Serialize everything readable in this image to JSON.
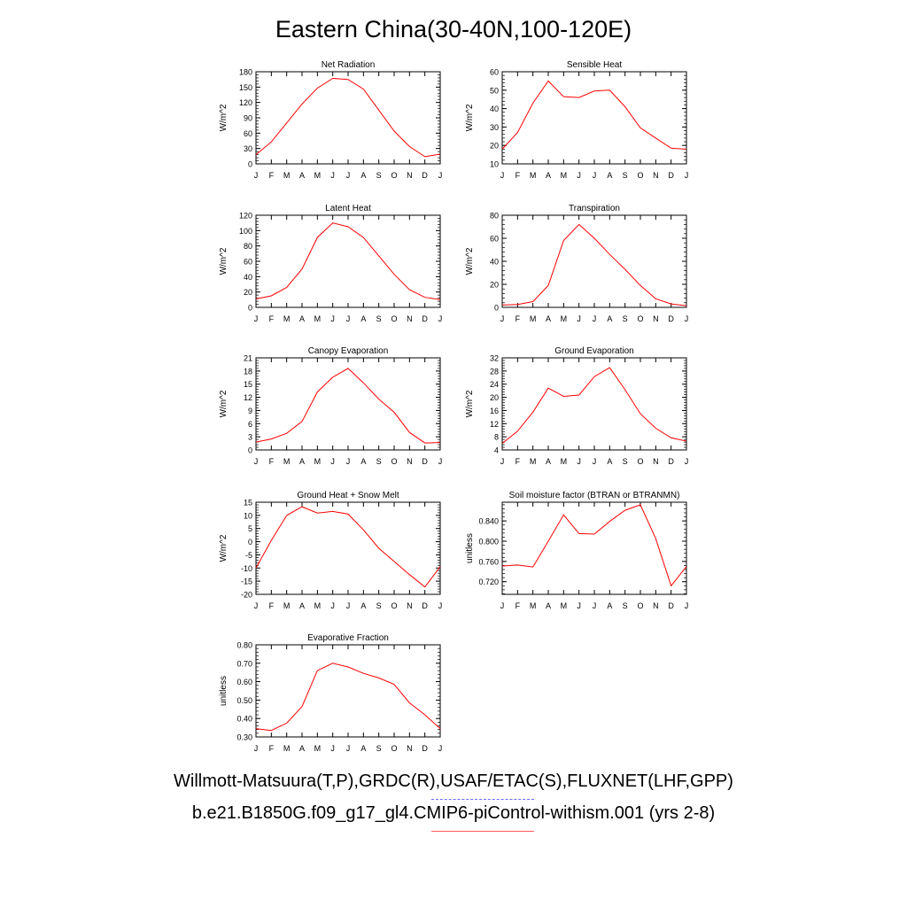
{
  "figure": {
    "title": "Eastern China(30-40N,100-120E)",
    "legend_obs": "Willmott-Matsuura(T,P),GRDC(R),USAF/ETAC(S),FLUXNET(LHF,GPP)",
    "legend_model": "b.e21.B1850G.f09_g17_gl4.CMIP6-piControl-withism.001 (yrs 2-8)",
    "colors": {
      "model": "#ff0000",
      "obs": "#6b6bff"
    }
  },
  "chart_data": [
    {
      "type": "line",
      "title": "Net Radiation",
      "ylabel": "W/m^2",
      "x": [
        "J",
        "F",
        "M",
        "A",
        "M",
        "J",
        "J",
        "A",
        "S",
        "O",
        "N",
        "D",
        "J"
      ],
      "ylim": [
        0,
        180
      ],
      "yticks": [
        "0",
        "30",
        "60",
        "90",
        "120",
        "150",
        "180"
      ],
      "series": [
        {
          "name": "model",
          "values": [
            18,
            43,
            80,
            117,
            148,
            167,
            165,
            146,
            105,
            64,
            34,
            14,
            19
          ]
        }
      ]
    },
    {
      "type": "line",
      "title": "Sensible Heat",
      "ylabel": "W/m^2",
      "x": [
        "J",
        "F",
        "M",
        "A",
        "M",
        "J",
        "J",
        "A",
        "S",
        "O",
        "N",
        "D",
        "J"
      ],
      "ylim": [
        10,
        60
      ],
      "yticks": [
        "10",
        "20",
        "30",
        "40",
        "50",
        "60"
      ],
      "series": [
        {
          "name": "model",
          "values": [
            18,
            27,
            43,
            55,
            46.5,
            46,
            49.5,
            50,
            41,
            29.5,
            24,
            18.5,
            18
          ]
        }
      ]
    },
    {
      "type": "line",
      "title": "Latent Heat",
      "ylabel": "W/m^2",
      "x": [
        "J",
        "F",
        "M",
        "A",
        "M",
        "J",
        "J",
        "A",
        "S",
        "O",
        "N",
        "D",
        "J"
      ],
      "ylim": [
        0,
        120
      ],
      "yticks": [
        "0",
        "20",
        "40",
        "60",
        "80",
        "100",
        "120"
      ],
      "series": [
        {
          "name": "model",
          "values": [
            11,
            15,
            26,
            50,
            91,
            110,
            105,
            91,
            67,
            43,
            23,
            13,
            10
          ]
        }
      ]
    },
    {
      "type": "line",
      "title": "Transpiration",
      "ylabel": "W/m^2",
      "x": [
        "J",
        "F",
        "M",
        "A",
        "M",
        "J",
        "J",
        "A",
        "S",
        "O",
        "N",
        "D",
        "J"
      ],
      "ylim": [
        0,
        80
      ],
      "yticks": [
        "0",
        "20",
        "40",
        "60",
        "80"
      ],
      "series": [
        {
          "name": "model",
          "values": [
            2,
            2.5,
            5,
            19,
            58,
            72,
            60,
            46,
            33,
            19,
            7.5,
            3,
            1.5
          ]
        }
      ]
    },
    {
      "type": "line",
      "title": "Canopy Evaporation",
      "ylabel": "W/m^2",
      "x": [
        "J",
        "F",
        "M",
        "A",
        "M",
        "J",
        "J",
        "A",
        "S",
        "O",
        "N",
        "D",
        "J"
      ],
      "ylim": [
        0,
        21
      ],
      "yticks": [
        "0",
        "3",
        "6",
        "9",
        "12",
        "15",
        "18",
        "21"
      ],
      "series": [
        {
          "name": "model",
          "values": [
            1.8,
            2.5,
            3.8,
            6.5,
            13.2,
            16.6,
            18.6,
            15.3,
            11.6,
            8.6,
            4,
            1.6,
            1.7
          ]
        }
      ]
    },
    {
      "type": "line",
      "title": "Ground Evaporation",
      "ylabel": "W/m^2",
      "x": [
        "J",
        "F",
        "M",
        "A",
        "M",
        "J",
        "J",
        "A",
        "S",
        "O",
        "N",
        "D",
        "J"
      ],
      "ylim": [
        4,
        32
      ],
      "yticks": [
        "4",
        "8",
        "12",
        "16",
        "20",
        "24",
        "28",
        "32"
      ],
      "series": [
        {
          "name": "model",
          "values": [
            6,
            9.7,
            15.5,
            22.8,
            20.3,
            20.7,
            26.3,
            29,
            22.3,
            15,
            10.6,
            7.7,
            6.7
          ]
        }
      ]
    },
    {
      "type": "line",
      "title": "Ground Heat + Snow Melt",
      "ylabel": "W/m^2",
      "x": [
        "J",
        "F",
        "M",
        "A",
        "M",
        "J",
        "J",
        "A",
        "S",
        "O",
        "N",
        "D",
        "J"
      ],
      "ylim": [
        -20,
        15
      ],
      "yticks": [
        "-20",
        "-15",
        "-10",
        "-5",
        "0",
        "5",
        "10",
        "15"
      ],
      "series": [
        {
          "name": "model",
          "values": [
            -10,
            0.5,
            10,
            13.3,
            10.9,
            11.5,
            10.5,
            4.5,
            -2.5,
            -7.5,
            -12.5,
            -17.2,
            -9.5
          ]
        }
      ]
    },
    {
      "type": "line",
      "title": "Soil moisture factor (BTRAN or BTRANMN)",
      "ylabel": "unitless",
      "x": [
        "J",
        "F",
        "M",
        "A",
        "M",
        "J",
        "J",
        "A",
        "S",
        "O",
        "N",
        "D",
        "J"
      ],
      "ylim": [
        0.695,
        0.877
      ],
      "yticks": [
        "0.720",
        "0.760",
        "0.800",
        "0.840"
      ],
      "ytick_values": [
        0.72,
        0.76,
        0.8,
        0.84
      ],
      "series": [
        {
          "name": "model",
          "values": [
            0.751,
            0.753,
            0.749,
            0.8,
            0.852,
            0.815,
            0.814,
            0.839,
            0.861,
            0.872,
            0.805,
            0.712,
            0.75
          ]
        }
      ]
    },
    {
      "type": "line",
      "title": "Evaporative Fraction",
      "ylabel": "unitless",
      "x": [
        "J",
        "F",
        "M",
        "A",
        "M",
        "J",
        "J",
        "A",
        "S",
        "O",
        "N",
        "D",
        "J"
      ],
      "ylim": [
        0.3,
        0.8
      ],
      "yticks": [
        "0.30",
        "0.40",
        "0.50",
        "0.60",
        "0.70",
        "0.80"
      ],
      "series": [
        {
          "name": "model",
          "values": [
            0.345,
            0.335,
            0.375,
            0.465,
            0.66,
            0.7,
            0.68,
            0.645,
            0.62,
            0.585,
            0.485,
            0.42,
            0.345
          ]
        }
      ]
    }
  ]
}
